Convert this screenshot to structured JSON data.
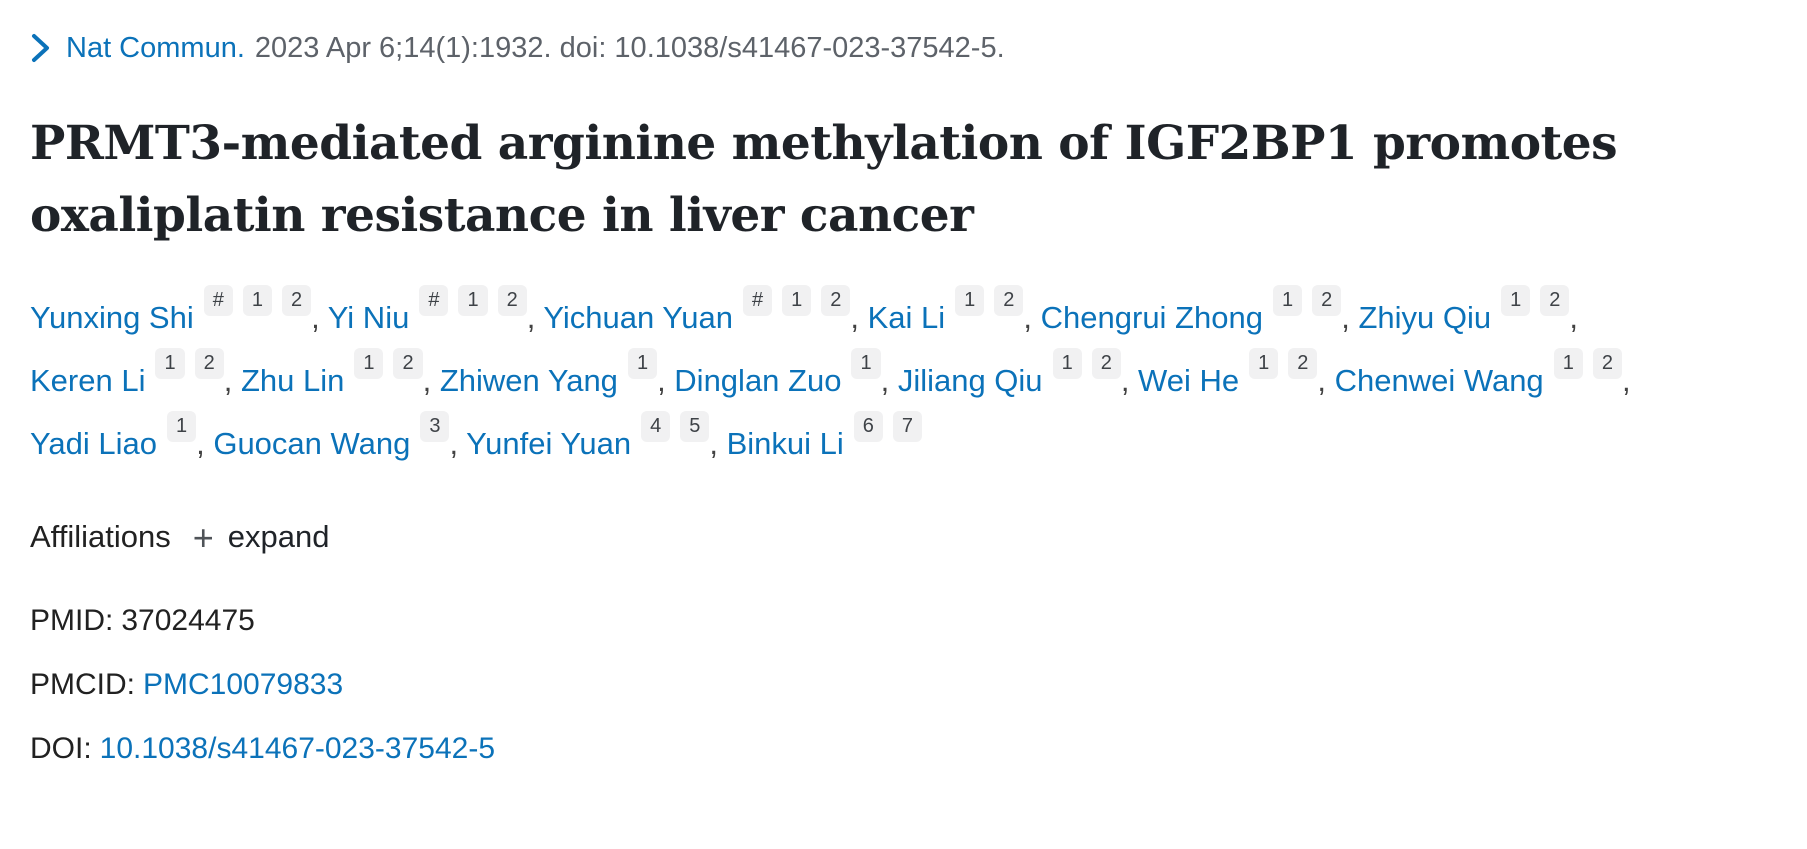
{
  "citation": {
    "journal": "Nat Commun.",
    "details": "2023 Apr 6;14(1):1932. doi: 10.1038/s41467-023-37542-5."
  },
  "title": "PRMT3-mediated arginine methylation of IGF2BP1 promotes oxaliplatin resistance in liver cancer",
  "authors": [
    {
      "name": "Yunxing Shi",
      "sups": [
        "#",
        "1",
        "2"
      ]
    },
    {
      "name": "Yi Niu",
      "sups": [
        "#",
        "1",
        "2"
      ]
    },
    {
      "name": "Yichuan Yuan",
      "sups": [
        "#",
        "1",
        "2"
      ]
    },
    {
      "name": "Kai Li",
      "sups": [
        "1",
        "2"
      ]
    },
    {
      "name": "Chengrui Zhong",
      "sups": [
        "1",
        "2"
      ]
    },
    {
      "name": "Zhiyu Qiu",
      "sups": [
        "1",
        "2"
      ]
    },
    {
      "name": "Keren Li",
      "sups": [
        "1",
        "2"
      ]
    },
    {
      "name": "Zhu Lin",
      "sups": [
        "1",
        "2"
      ]
    },
    {
      "name": "Zhiwen Yang",
      "sups": [
        "1"
      ]
    },
    {
      "name": "Dinglan Zuo",
      "sups": [
        "1"
      ]
    },
    {
      "name": "Jiliang Qiu",
      "sups": [
        "1",
        "2"
      ]
    },
    {
      "name": "Wei He",
      "sups": [
        "1",
        "2"
      ]
    },
    {
      "name": "Chenwei Wang",
      "sups": [
        "1",
        "2"
      ]
    },
    {
      "name": "Yadi Liao",
      "sups": [
        "1"
      ]
    },
    {
      "name": "Guocan Wang",
      "sups": [
        "3"
      ]
    },
    {
      "name": "Yunfei Yuan",
      "sups": [
        "4",
        "5"
      ]
    },
    {
      "name": "Binkui Li",
      "sups": [
        "6",
        "7"
      ]
    }
  ],
  "author_separator": ", ",
  "affiliations": {
    "label": "Affiliations",
    "plus_icon": "+",
    "expand_label": "expand"
  },
  "ids": [
    {
      "name": "pmid",
      "label": "PMID:",
      "value": "37024475",
      "link": false
    },
    {
      "name": "pmcid",
      "label": "PMCID:",
      "value": "PMC10079833",
      "link": true
    },
    {
      "name": "doi",
      "label": "DOI:",
      "value": "10.1038/s41467-023-37542-5",
      "link": true
    }
  ],
  "colors": {
    "link_blue": "#0b72b9",
    "text_dark": "#212121",
    "citation_gray": "#5d6269",
    "badge_bg": "#f1f1f2",
    "badge_text": "#3e4247"
  }
}
